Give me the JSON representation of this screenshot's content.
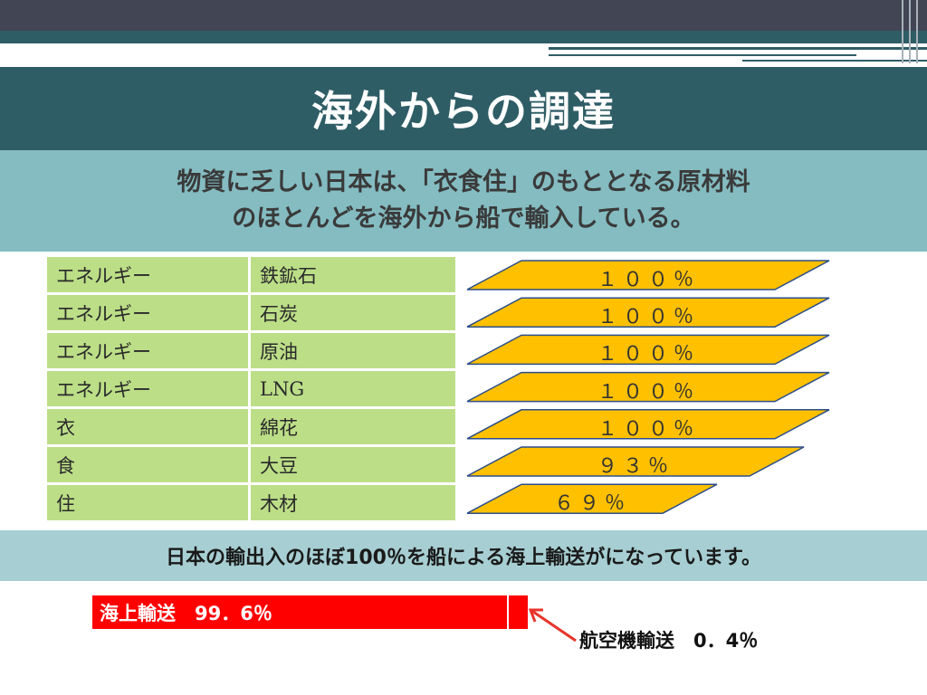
{
  "slide": {
    "title": "海外からの調達",
    "subtitle_line1": "物資に乏しい日本は、「衣食住」のもととなる原材料",
    "subtitle_line2": "のほとんどを海外から船で輸入している。"
  },
  "table": {
    "rows": [
      {
        "category": "エネルギー",
        "item": "鉄鉱石"
      },
      {
        "category": "エネルギー",
        "item": "石炭"
      },
      {
        "category": "エネルギー",
        "item": "原油"
      },
      {
        "category": "エネルギー",
        "item": "LNG"
      },
      {
        "category": "衣",
        "item": "綿花"
      },
      {
        "category": "食",
        "item": "大豆"
      },
      {
        "category": "住",
        "item": "木材"
      }
    ]
  },
  "chart_data": {
    "type": "bar",
    "categories": [
      "鉄鉱石",
      "石炭",
      "原油",
      "LNG",
      "綿花",
      "大豆",
      "木材"
    ],
    "values": [
      100,
      100,
      100,
      100,
      100,
      93,
      69
    ],
    "labels": [
      "１００％",
      "１００％",
      "１００％",
      "１００％",
      "１００％",
      "９３％",
      "６９％"
    ],
    "bar_color": "#ffc000",
    "title": "",
    "xlabel": "",
    "ylabel": ""
  },
  "bottom": {
    "message": "日本の輸出入のほぼ100％を船による海上輸送がになっています。",
    "sea_label": "海上輸送　99．6％",
    "air_label": "航空機輸送　0．4％",
    "sea_share": 99.6,
    "air_share": 0.4,
    "bar_color": "#ff0000"
  },
  "colors": {
    "title_band": "#2f5d66",
    "subtitle_band": "#84bcc1",
    "table_cell": "#bcde87",
    "bottom_band": "#a7cfd3"
  }
}
